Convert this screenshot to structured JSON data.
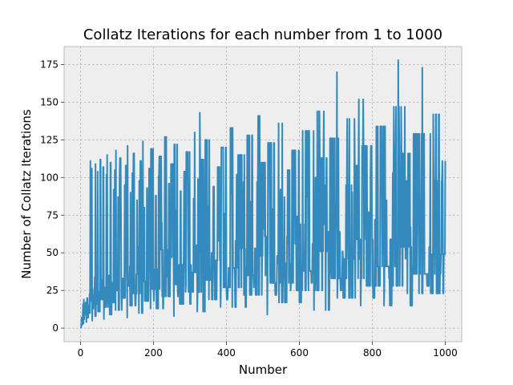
{
  "chart_data": {
    "type": "line",
    "title": "Collatz Iterations for each number from 1 to 1000",
    "xlabel": "Number",
    "ylabel": "Number of Collatz Iterations",
    "xlim": [
      -45,
      1045
    ],
    "ylim": [
      -9,
      187
    ],
    "xticks": [
      0,
      200,
      400,
      600,
      800,
      1000
    ],
    "yticks": [
      0,
      25,
      50,
      75,
      100,
      125,
      150,
      175
    ],
    "grid": true,
    "background": "#eeeeee",
    "line_color": "#348abd",
    "x_range": [
      1,
      1000
    ],
    "series": [
      {
        "function": "collatz_stopping_time"
      }
    ]
  }
}
